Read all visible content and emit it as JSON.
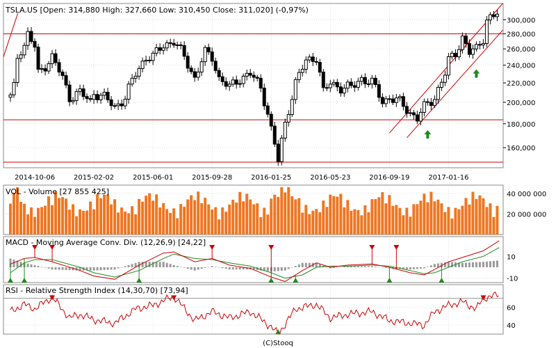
{
  "footer": "(C)Stooq",
  "colors": {
    "candle": "#000000",
    "red_line": "#cc0000",
    "volume_bar": "#ee7722",
    "macd_line": "#cc0000",
    "signal_line": "#228822",
    "histogram": "#999999",
    "rsi_line": "#cc0000",
    "buy_marker": "#228822",
    "sell_marker": "#cc0000",
    "panel_border": "#888888",
    "grid": "#cccccc"
  },
  "chart_data": [
    {
      "type": "candlestick",
      "title": "TSLA.US [Open: 314,880  High: 327,660  Low: 310,450  Close: 311,020] (-0,97%)",
      "x_tick_labels": [
        "2014-10-06",
        "2015-02-02",
        "2015-06-01",
        "2015-09-28",
        "2016-01-25",
        "2016-05-23",
        "2016-09-19",
        "2017-01-16"
      ],
      "y_tick_labels": [
        "160,000",
        "180,000",
        "200,000",
        "220,000",
        "240,000",
        "260,000",
        "280,000",
        "300,000"
      ],
      "y_scale": "log",
      "ylim": [
        145,
        325
      ],
      "last_candle": {
        "open": 314.88,
        "high": 327.66,
        "low": 310.45,
        "close": 311.02
      },
      "close_series": [
        {
          "x": "2014-08-18",
          "y": 205
        },
        {
          "x": "2014-08-25",
          "y": 215
        },
        {
          "x": "2014-09-02",
          "y": 255
        },
        {
          "x": "2014-09-15",
          "y": 265
        },
        {
          "x": "2014-09-22",
          "y": 280
        },
        {
          "x": "2014-10-06",
          "y": 262
        },
        {
          "x": "2014-10-13",
          "y": 230
        },
        {
          "x": "2014-10-27",
          "y": 240
        },
        {
          "x": "2014-11-10",
          "y": 250
        },
        {
          "x": "2014-12-01",
          "y": 225
        },
        {
          "x": "2014-12-15",
          "y": 205
        },
        {
          "x": "2015-01-05",
          "y": 210
        },
        {
          "x": "2015-01-26",
          "y": 200
        },
        {
          "x": "2015-02-02",
          "y": 210
        },
        {
          "x": "2015-02-23",
          "y": 205
        },
        {
          "x": "2015-03-16",
          "y": 195
        },
        {
          "x": "2015-04-06",
          "y": 205
        },
        {
          "x": "2015-04-27",
          "y": 230
        },
        {
          "x": "2015-05-18",
          "y": 250
        },
        {
          "x": "2015-06-01",
          "y": 250
        },
        {
          "x": "2015-06-22",
          "y": 265
        },
        {
          "x": "2015-07-13",
          "y": 270
        },
        {
          "x": "2015-08-03",
          "y": 250
        },
        {
          "x": "2015-08-24",
          "y": 225
        },
        {
          "x": "2015-09-14",
          "y": 255
        },
        {
          "x": "2015-09-28",
          "y": 250
        },
        {
          "x": "2015-10-12",
          "y": 225
        },
        {
          "x": "2015-11-02",
          "y": 215
        },
        {
          "x": "2015-11-23",
          "y": 225
        },
        {
          "x": "2015-12-14",
          "y": 230
        },
        {
          "x": "2016-01-04",
          "y": 215
        },
        {
          "x": "2016-01-18",
          "y": 190
        },
        {
          "x": "2016-01-25",
          "y": 175
        },
        {
          "x": "2016-02-08",
          "y": 150
        },
        {
          "x": "2016-02-22",
          "y": 180
        },
        {
          "x": "2016-03-14",
          "y": 220
        },
        {
          "x": "2016-04-04",
          "y": 245
        },
        {
          "x": "2016-04-25",
          "y": 250
        },
        {
          "x": "2016-05-09",
          "y": 210
        },
        {
          "x": "2016-05-23",
          "y": 220
        },
        {
          "x": "2016-06-13",
          "y": 215
        },
        {
          "x": "2016-07-05",
          "y": 215
        },
        {
          "x": "2016-07-25",
          "y": 225
        },
        {
          "x": "2016-08-15",
          "y": 220
        },
        {
          "x": "2016-09-06",
          "y": 200
        },
        {
          "x": "2016-09-19",
          "y": 205
        },
        {
          "x": "2016-10-10",
          "y": 200
        },
        {
          "x": "2016-10-31",
          "y": 190
        },
        {
          "x": "2016-11-14",
          "y": 185
        },
        {
          "x": "2016-11-28",
          "y": 195
        },
        {
          "x": "2016-12-19",
          "y": 205
        },
        {
          "x": "2017-01-09",
          "y": 230
        },
        {
          "x": "2017-01-16",
          "y": 245
        },
        {
          "x": "2017-01-30",
          "y": 255
        },
        {
          "x": "2017-02-13",
          "y": 275
        },
        {
          "x": "2017-02-27",
          "y": 255
        },
        {
          "x": "2017-03-13",
          "y": 260
        },
        {
          "x": "2017-03-27",
          "y": 275
        },
        {
          "x": "2017-04-03",
          "y": 300
        },
        {
          "x": "2017-04-17",
          "y": 305
        },
        {
          "x": "2017-04-28",
          "y": 311
        }
      ],
      "support_resistance": [
        280,
        183.5,
        149
      ],
      "channels": [
        {
          "from": {
            "x": "2016-09-19",
            "y": 172
          },
          "to": {
            "x": "2017-05-05",
            "y": 325
          }
        },
        {
          "from": {
            "x": "2016-10-24",
            "y": 168
          },
          "to": {
            "x": "2017-05-05",
            "y": 285
          }
        },
        {
          "from": {
            "x": "2014-08-04",
            "y": 250
          },
          "to": {
            "x": "2014-09-02",
            "y": 310
          }
        }
      ],
      "buy_arrows": [
        {
          "x": "2016-12-05",
          "y": 178
        },
        {
          "x": "2017-03-13",
          "y": 240
        }
      ]
    },
    {
      "type": "bar",
      "title": "VOL - Volume [27 855 425]",
      "y_tick_labels": [
        "20 000 000",
        "40 000 000"
      ],
      "ylim": [
        0,
        48000000
      ],
      "last_value": 27855425
    },
    {
      "type": "line",
      "title": "MACD - Moving Average Conv. Div. (12,26,9) [24,22]",
      "y_tick_labels": [
        "10",
        "-10"
      ],
      "ylim": [
        -14,
        28
      ],
      "series": [
        {
          "name": "MACD",
          "values": [
            {
              "x": "2014-08-18",
              "y": 3
            },
            {
              "x": "2014-09-15",
              "y": 8
            },
            {
              "x": "2014-10-06",
              "y": 9
            },
            {
              "x": "2014-11-10",
              "y": 5
            },
            {
              "x": "2015-01-05",
              "y": -3
            },
            {
              "x": "2015-02-02",
              "y": -8
            },
            {
              "x": "2015-03-16",
              "y": -11
            },
            {
              "x": "2015-05-04",
              "y": 2
            },
            {
              "x": "2015-06-22",
              "y": 13
            },
            {
              "x": "2015-07-13",
              "y": 14
            },
            {
              "x": "2015-08-24",
              "y": 5
            },
            {
              "x": "2015-09-28",
              "y": 8
            },
            {
              "x": "2015-11-02",
              "y": 2
            },
            {
              "x": "2015-12-14",
              "y": -1
            },
            {
              "x": "2016-01-25",
              "y": -9
            },
            {
              "x": "2016-02-22",
              "y": -13
            },
            {
              "x": "2016-03-28",
              "y": -3
            },
            {
              "x": "2016-04-25",
              "y": 4
            },
            {
              "x": "2016-05-23",
              "y": 0
            },
            {
              "x": "2016-06-27",
              "y": 2
            },
            {
              "x": "2016-08-15",
              "y": 3
            },
            {
              "x": "2016-09-19",
              "y": 0
            },
            {
              "x": "2016-10-31",
              "y": -5
            },
            {
              "x": "2016-11-28",
              "y": -7
            },
            {
              "x": "2016-12-19",
              "y": -2
            },
            {
              "x": "2017-01-16",
              "y": 5
            },
            {
              "x": "2017-02-13",
              "y": 9
            },
            {
              "x": "2017-03-27",
              "y": 15
            },
            {
              "x": "2017-04-28",
              "y": 24.22
            }
          ]
        },
        {
          "name": "Signal",
          "values": [
            {
              "x": "2014-08-18",
              "y": -5
            },
            {
              "x": "2014-09-15",
              "y": 4
            },
            {
              "x": "2014-10-06",
              "y": 7
            },
            {
              "x": "2014-11-10",
              "y": 7
            },
            {
              "x": "2015-01-05",
              "y": 0
            },
            {
              "x": "2015-02-02",
              "y": -5
            },
            {
              "x": "2015-03-16",
              "y": -9
            },
            {
              "x": "2015-05-04",
              "y": -3
            },
            {
              "x": "2015-06-22",
              "y": 8
            },
            {
              "x": "2015-07-13",
              "y": 12
            },
            {
              "x": "2015-08-24",
              "y": 8
            },
            {
              "x": "2015-09-28",
              "y": 7
            },
            {
              "x": "2015-11-02",
              "y": 4
            },
            {
              "x": "2015-12-14",
              "y": 1
            },
            {
              "x": "2016-01-25",
              "y": -5
            },
            {
              "x": "2016-02-22",
              "y": -10
            },
            {
              "x": "2016-03-28",
              "y": -7
            },
            {
              "x": "2016-04-25",
              "y": 0
            },
            {
              "x": "2016-05-23",
              "y": 1
            },
            {
              "x": "2016-06-27",
              "y": 1
            },
            {
              "x": "2016-08-15",
              "y": 2
            },
            {
              "x": "2016-09-19",
              "y": 1
            },
            {
              "x": "2016-10-31",
              "y": -3
            },
            {
              "x": "2016-11-28",
              "y": -6
            },
            {
              "x": "2016-12-19",
              "y": -5
            },
            {
              "x": "2017-01-16",
              "y": 0
            },
            {
              "x": "2017-02-13",
              "y": 5
            },
            {
              "x": "2017-03-27",
              "y": 10
            },
            {
              "x": "2017-04-28",
              "y": 18
            }
          ]
        }
      ],
      "sell_markers": [
        "2014-10-06",
        "2014-11-10",
        "2015-09-28",
        "2016-01-25",
        "2016-08-15",
        "2016-10-03"
      ],
      "buy_markers": [
        "2014-08-18",
        "2014-09-15",
        "2015-05-04",
        "2016-01-25",
        "2016-03-14",
        "2016-09-19",
        "2017-01-02"
      ]
    },
    {
      "type": "line",
      "title": "RSI - Relative Strength Index (14,30,70) [73,94]",
      "y_tick_labels": [
        "60",
        "40"
      ],
      "ylim": [
        30,
        85
      ],
      "reference_line": 70,
      "series": [
        {
          "name": "RSI",
          "values": [
            {
              "x": "2014-08-18",
              "y": 55
            },
            {
              "x": "2014-09-15",
              "y": 63
            },
            {
              "x": "2014-10-06",
              "y": 58
            },
            {
              "x": "2014-10-27",
              "y": 66
            },
            {
              "x": "2014-11-10",
              "y": 71
            },
            {
              "x": "2014-12-15",
              "y": 48
            },
            {
              "x": "2015-01-05",
              "y": 52
            },
            {
              "x": "2015-02-02",
              "y": 46
            },
            {
              "x": "2015-03-16",
              "y": 42
            },
            {
              "x": "2015-04-27",
              "y": 58
            },
            {
              "x": "2015-06-01",
              "y": 62
            },
            {
              "x": "2015-07-13",
              "y": 72
            },
            {
              "x": "2015-08-24",
              "y": 45
            },
            {
              "x": "2015-09-28",
              "y": 55
            },
            {
              "x": "2015-11-02",
              "y": 48
            },
            {
              "x": "2015-12-14",
              "y": 55
            },
            {
              "x": "2016-01-25",
              "y": 38
            },
            {
              "x": "2016-02-08",
              "y": 30
            },
            {
              "x": "2016-03-14",
              "y": 58
            },
            {
              "x": "2016-04-25",
              "y": 63
            },
            {
              "x": "2016-05-23",
              "y": 48
            },
            {
              "x": "2016-06-27",
              "y": 52
            },
            {
              "x": "2016-08-15",
              "y": 55
            },
            {
              "x": "2016-09-19",
              "y": 45
            },
            {
              "x": "2016-10-31",
              "y": 42
            },
            {
              "x": "2016-11-28",
              "y": 40
            },
            {
              "x": "2016-12-19",
              "y": 55
            },
            {
              "x": "2017-01-16",
              "y": 62
            },
            {
              "x": "2017-02-13",
              "y": 66
            },
            {
              "x": "2017-03-13",
              "y": 58
            },
            {
              "x": "2017-03-27",
              "y": 70
            },
            {
              "x": "2017-04-28",
              "y": 73.94
            }
          ]
        }
      ],
      "sell_markers": [
        "2014-11-10",
        "2015-07-13",
        "2017-03-27"
      ],
      "buy_markers": [
        "2016-02-08"
      ]
    }
  ]
}
